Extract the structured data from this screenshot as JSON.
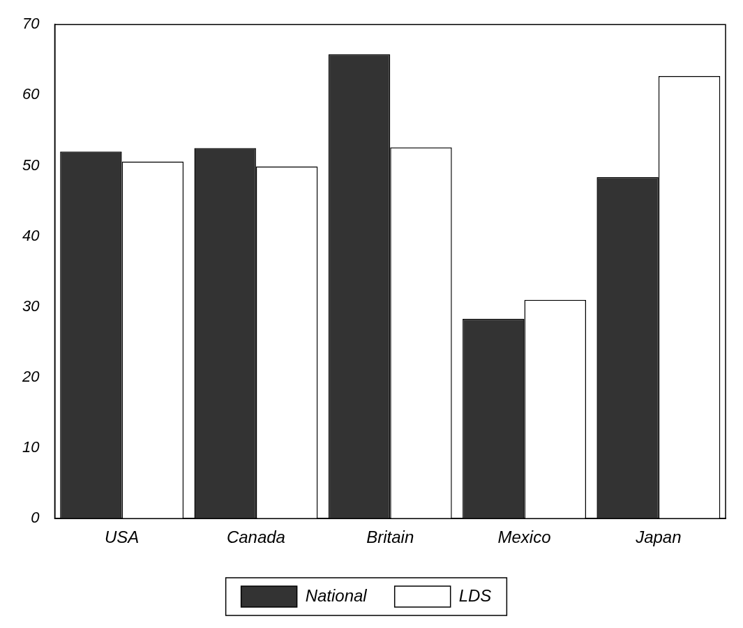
{
  "chart_data": {
    "type": "bar",
    "categories": [
      "USA",
      "Canada",
      "Britain",
      "Mexico",
      "Japan"
    ],
    "series": [
      {
        "name": "National",
        "color": "#333333",
        "values": [
          52,
          52.5,
          65.8,
          28.3,
          48.4
        ]
      },
      {
        "name": "LDS",
        "color": "#ffffff",
        "values": [
          50.6,
          49.9,
          52.6,
          31,
          62.7
        ]
      }
    ],
    "ylim": [
      0,
      70
    ],
    "yticks": [
      0,
      10,
      20,
      30,
      40,
      50,
      60,
      70
    ],
    "grid": false,
    "legend": "bottom"
  }
}
